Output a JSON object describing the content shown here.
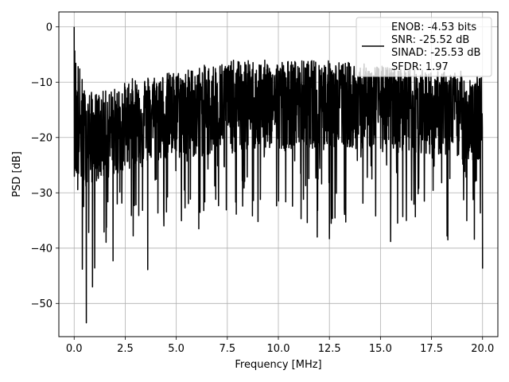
{
  "chart_data": {
    "type": "line",
    "xlabel": "Frequency [MHz]",
    "ylabel": "PSD [dB]",
    "xlim": [
      -0.75,
      20.75
    ],
    "ylim": [
      -56,
      2.7
    ],
    "xticks": [
      0.0,
      2.5,
      5.0,
      7.5,
      10.0,
      12.5,
      15.0,
      17.5,
      20.0
    ],
    "xtick_labels": [
      "0.0",
      "2.5",
      "5.0",
      "7.5",
      "10.0",
      "12.5",
      "15.0",
      "17.5",
      "20.0"
    ],
    "yticks": [
      0,
      -10,
      -20,
      -30,
      -40,
      -50
    ],
    "ytick_labels": [
      "0",
      "−10",
      "−20",
      "−30",
      "−40",
      "−50"
    ],
    "grid": true,
    "legend_position": "top-right",
    "legend_entries": [
      "ENOB: -4.53 bits",
      "SNR: -25.52 dB",
      "SINAD: -25.53 dB",
      "SFDR: 1.97"
    ],
    "series": [
      {
        "color": "#000000",
        "x_range": [
          0,
          20
        ],
        "points": 2049,
        "peak": {
          "x": 0.0,
          "y": 0.0
        },
        "envelope": {
          "x": [
            0.0,
            0.5,
            1.0,
            2.0,
            3.0,
            5.0,
            7.5,
            10.0,
            12.5,
            15.0,
            17.5,
            19.0,
            20.0
          ],
          "upper": [
            -2,
            -11,
            -12,
            -11,
            -9,
            -8,
            -6,
            -6,
            -6,
            -7,
            -8,
            -8,
            -9
          ],
          "mid": [
            -18,
            -20,
            -19,
            -18,
            -16,
            -15,
            -14,
            -13,
            -13,
            -13,
            -14,
            -15,
            -16
          ],
          "lower": [
            -32,
            -40,
            -45,
            -41,
            -38,
            -36,
            -35,
            -35,
            -36,
            -37,
            -38,
            -40,
            -43
          ]
        },
        "notable_dips": [
          {
            "x": 0.6,
            "y": -53.5
          },
          {
            "x": 0.9,
            "y": -47.0
          },
          {
            "x": 0.4,
            "y": -43.8
          },
          {
            "x": 1.9,
            "y": -42.3
          },
          {
            "x": 3.6,
            "y": -43.9
          },
          {
            "x": 6.1,
            "y": -36.5
          },
          {
            "x": 9.0,
            "y": -35.2
          },
          {
            "x": 11.9,
            "y": -38.0
          },
          {
            "x": 12.5,
            "y": -38.3
          },
          {
            "x": 15.5,
            "y": -38.8
          },
          {
            "x": 18.3,
            "y": -38.5
          },
          {
            "x": 19.6,
            "y": -38.4
          },
          {
            "x": 20.0,
            "y": -43.7
          }
        ]
      }
    ]
  }
}
